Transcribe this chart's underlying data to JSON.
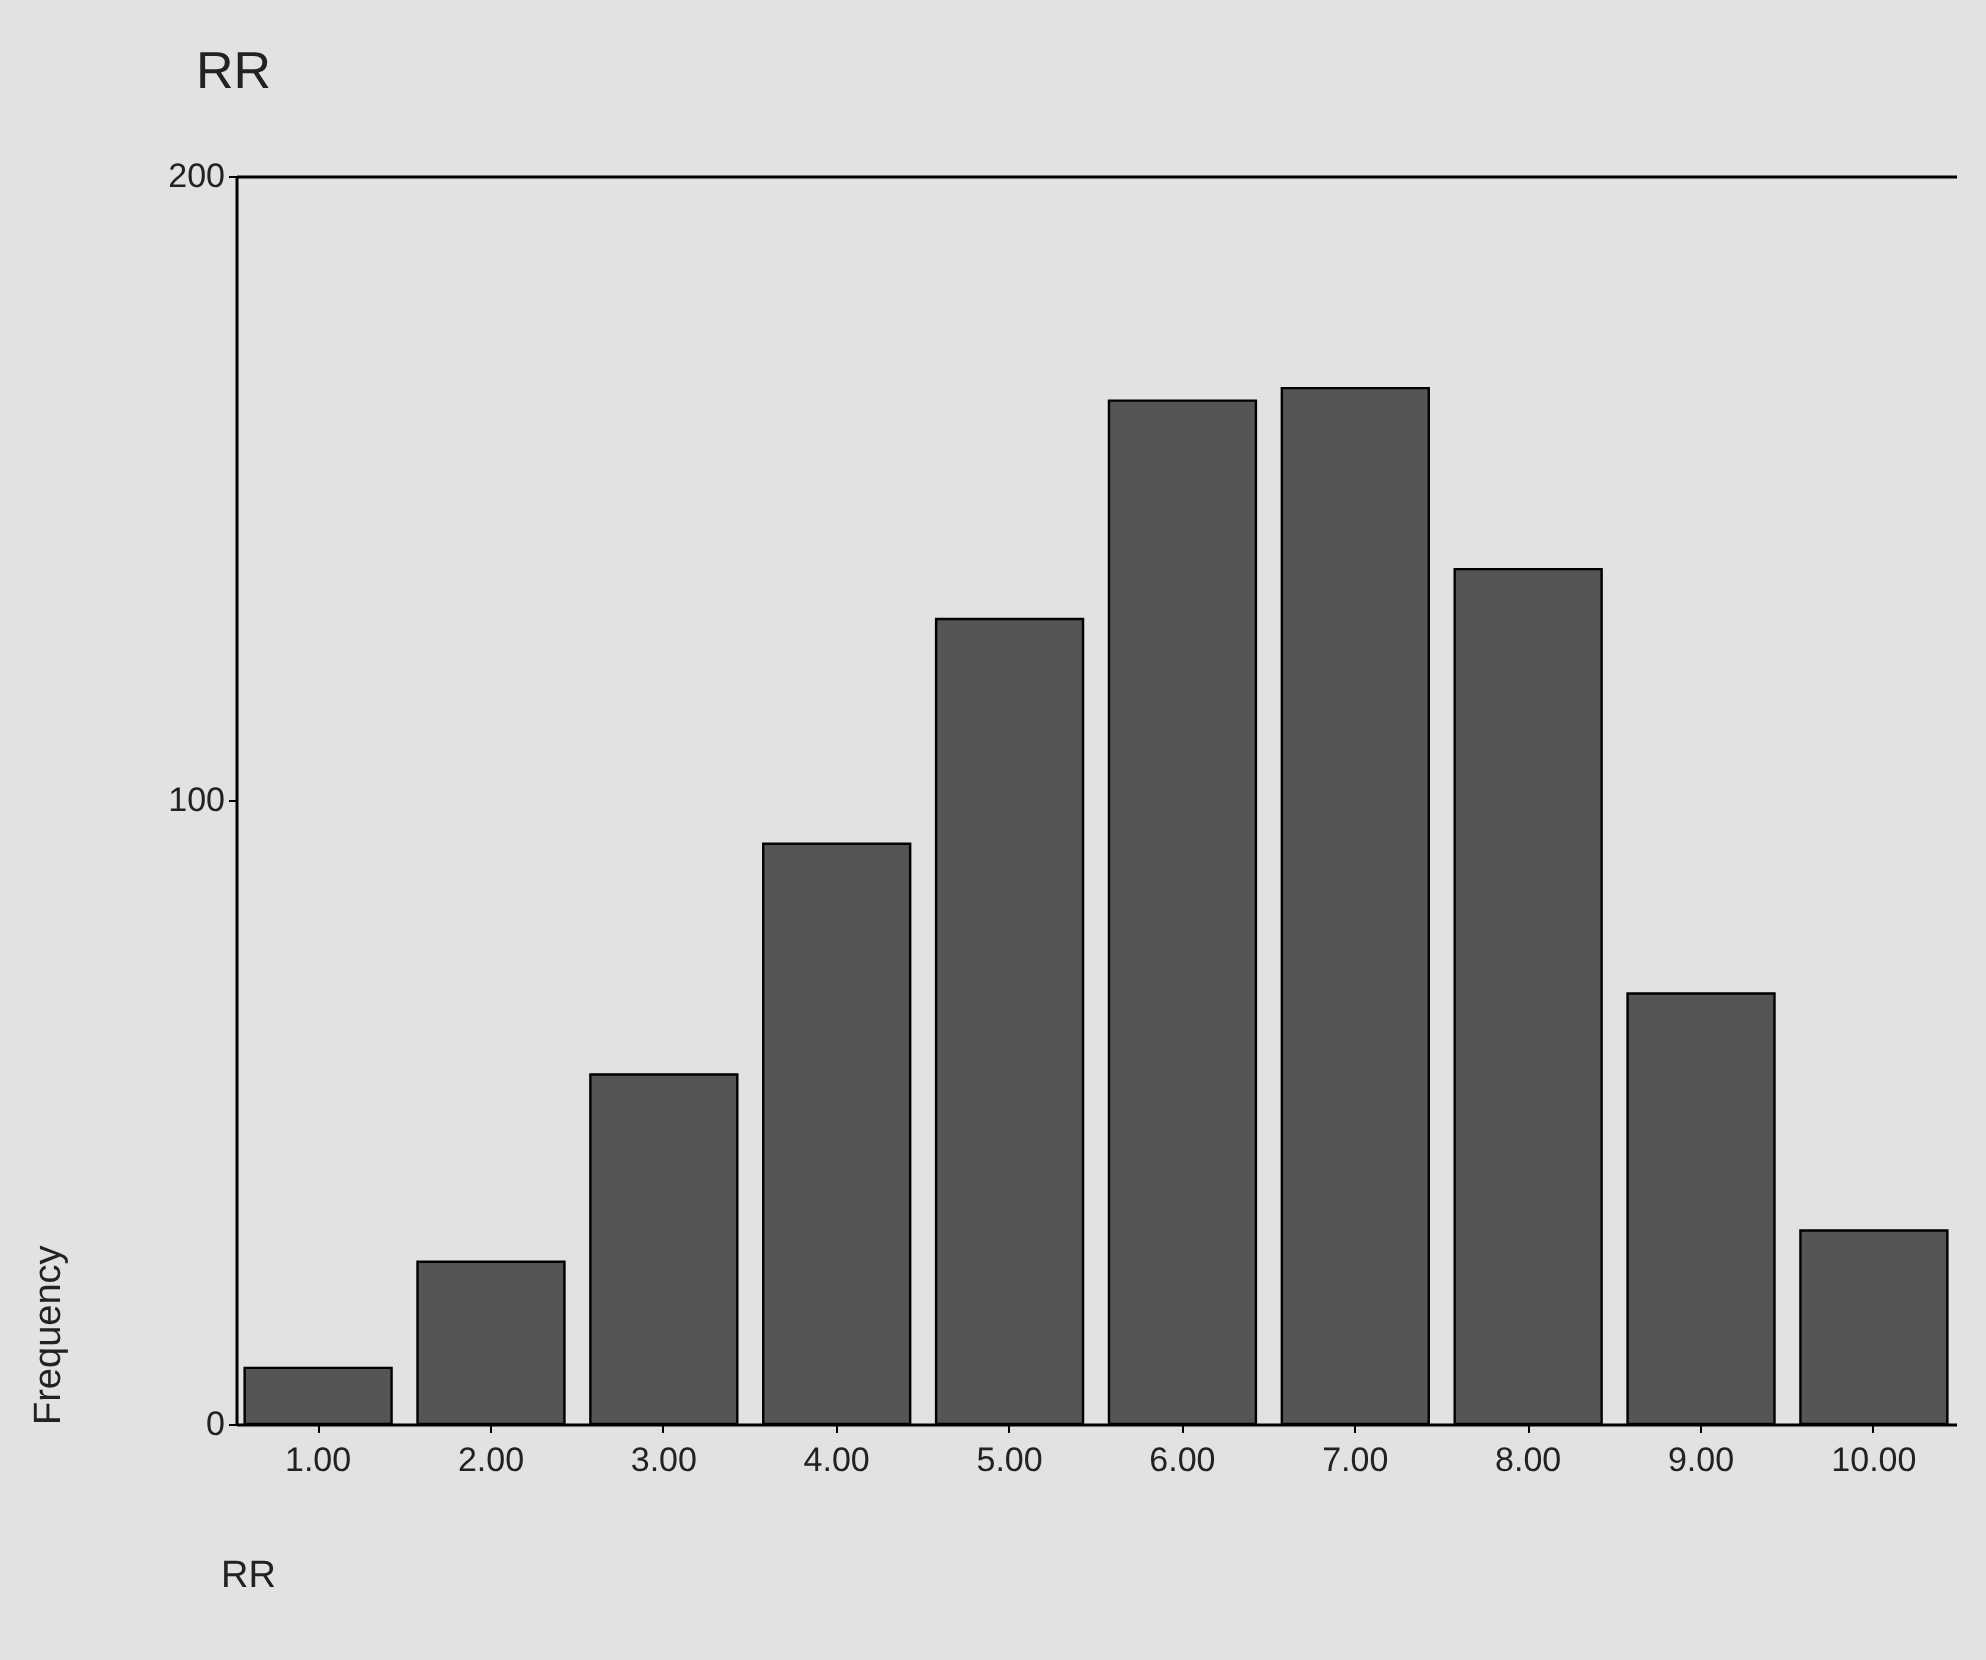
{
  "chart_data": {
    "type": "bar",
    "title": "RR",
    "xlabel": "RR",
    "ylabel": "Frequency",
    "categories": [
      "1.00",
      "2.00",
      "3.00",
      "4.00",
      "5.00",
      "6.00",
      "7.00",
      "8.00",
      "9.00",
      "10.00"
    ],
    "values": [
      9,
      26,
      56,
      93,
      129,
      164,
      166,
      137,
      69,
      31
    ],
    "color": "#555555",
    "ylim": [
      0,
      200
    ],
    "yticks": [
      0,
      100,
      200
    ]
  }
}
